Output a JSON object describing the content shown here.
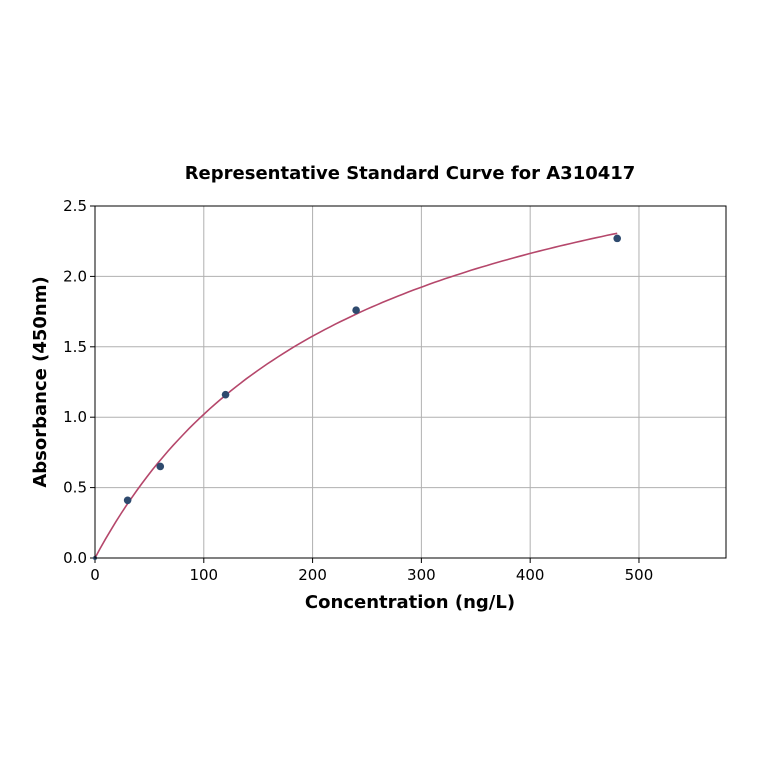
{
  "chart_data": {
    "type": "scatter",
    "title": "Representative Standard Curve for A310417",
    "xlabel": "Concentration (ng/L)",
    "ylabel": "Absorbance (450nm)",
    "xlim": [
      0,
      580
    ],
    "ylim": [
      0,
      2.5
    ],
    "xticks": [
      0,
      100,
      200,
      300,
      400,
      500
    ],
    "yticks": [
      0.0,
      0.5,
      1.0,
      1.5,
      2.0,
      2.5
    ],
    "grid": true,
    "points": [
      {
        "x": 0,
        "y": 0.0
      },
      {
        "x": 30,
        "y": 0.41
      },
      {
        "x": 60,
        "y": 0.65
      },
      {
        "x": 120,
        "y": 1.16
      },
      {
        "x": 240,
        "y": 1.76
      },
      {
        "x": 480,
        "y": 2.27
      }
    ],
    "fit_curve": {
      "type": "saturating",
      "x_range": [
        0,
        480
      ]
    },
    "colors": {
      "points": "#2e4a6e",
      "curve": "#b5476b",
      "grid": "#b0b0b0"
    }
  }
}
